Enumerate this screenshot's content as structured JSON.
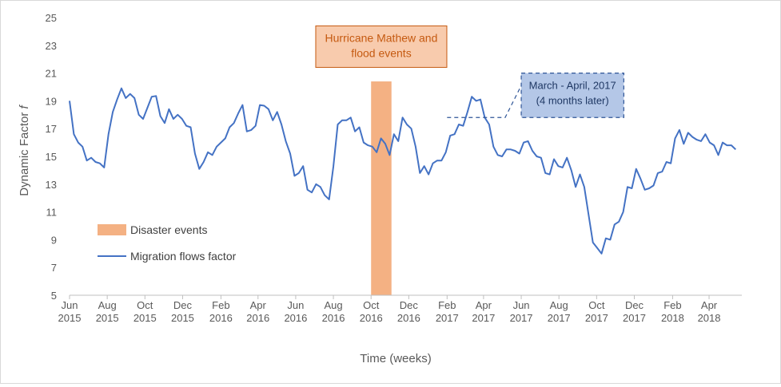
{
  "chart_data": {
    "type": "line",
    "title": "",
    "xlabel": "Time (weeks)",
    "ylabel": "Dynamic Factor",
    "ylabel_symbol": "f",
    "ylim": [
      5,
      25
    ],
    "yticks": [
      5,
      7,
      9,
      11,
      13,
      15,
      17,
      19,
      21,
      23,
      25
    ],
    "grid": {
      "horizontal": false,
      "vertical": false
    },
    "x_tick_labels": [
      {
        "month": "Jun",
        "year": "2015",
        "date": "2015-06-01"
      },
      {
        "month": "Aug",
        "year": "2015",
        "date": "2015-08-01"
      },
      {
        "month": "Oct",
        "year": "2015",
        "date": "2015-10-01"
      },
      {
        "month": "Dec",
        "year": "2015",
        "date": "2015-12-01"
      },
      {
        "month": "Feb",
        "year": "2016",
        "date": "2016-02-01"
      },
      {
        "month": "Apr",
        "year": "2016",
        "date": "2016-04-01"
      },
      {
        "month": "Jun",
        "year": "2016",
        "date": "2016-06-01"
      },
      {
        "month": "Aug",
        "year": "2016",
        "date": "2016-08-01"
      },
      {
        "month": "Oct",
        "year": "2016",
        "date": "2016-10-01"
      },
      {
        "month": "Dec",
        "year": "2016",
        "date": "2016-12-01"
      },
      {
        "month": "Feb",
        "year": "2017",
        "date": "2017-02-01"
      },
      {
        "month": "Apr",
        "year": "2017",
        "date": "2017-04-01"
      },
      {
        "month": "Jun",
        "year": "2017",
        "date": "2017-06-01"
      },
      {
        "month": "Aug",
        "year": "2017",
        "date": "2017-08-01"
      },
      {
        "month": "Oct",
        "year": "2017",
        "date": "2017-10-01"
      },
      {
        "month": "Dec",
        "year": "2017",
        "date": "2017-12-01"
      },
      {
        "month": "Feb",
        "year": "2018",
        "date": "2018-02-01"
      },
      {
        "month": "Apr",
        "year": "2018",
        "date": "2018-04-01"
      }
    ],
    "xlim": [
      "2015-06-01",
      "2018-05-24"
    ],
    "legend": {
      "placement": "lower-left",
      "entries": [
        {
          "label": "Disaster events",
          "kind": "box",
          "color": "#f4b183"
        },
        {
          "label": "Migration flows factor",
          "kind": "line",
          "color": "#4472c4"
        }
      ]
    },
    "disaster_band": {
      "start": "2016-10-01",
      "end": "2016-11-03",
      "color": "#f4b183",
      "label_lines": [
        "Hurricane Mathew and",
        "flood events"
      ],
      "label_color": "#c55a11",
      "label_fill": "#f8cbad",
      "label_border": "#c55a11"
    },
    "callout": {
      "lines": [
        "March - April, 2017",
        "(4 months later)"
      ],
      "fill": "#b4c7e7",
      "border": "#2f5597",
      "text_color": "#1f3864",
      "start": "2017-06-01",
      "end": "2017-11-14",
      "y_top": 21,
      "y_bottom": 17.8,
      "leader": [
        {
          "date": "2017-02-01",
          "y": 17.8
        },
        {
          "date": "2017-05-06",
          "y": 17.8
        },
        {
          "date": "2017-06-01",
          "y": 20.1
        }
      ]
    },
    "series": [
      {
        "name": "Migration flows factor",
        "color": "#4472c4",
        "start_date": "2015-06-01",
        "interval_days": 7,
        "values": [
          19.0,
          16.6,
          16.0,
          15.7,
          14.7,
          14.9,
          14.6,
          14.5,
          14.2,
          16.6,
          18.2,
          19.1,
          19.9,
          19.2,
          19.5,
          19.2,
          18.0,
          17.7,
          18.5,
          19.3,
          19.35,
          17.9,
          17.4,
          18.4,
          17.7,
          18.0,
          17.7,
          17.2,
          17.1,
          15.2,
          14.1,
          14.6,
          15.3,
          15.1,
          15.7,
          16.0,
          16.3,
          17.1,
          17.4,
          18.1,
          18.7,
          16.8,
          16.9,
          17.2,
          18.7,
          18.65,
          18.4,
          17.6,
          18.2,
          17.3,
          16.1,
          15.2,
          13.6,
          13.8,
          14.3,
          12.6,
          12.4,
          13.0,
          12.8,
          12.2,
          11.9,
          14.3,
          17.3,
          17.6,
          17.6,
          17.8,
          16.8,
          17.1,
          16.0,
          15.8,
          15.7,
          15.3,
          16.3,
          15.9,
          15.1,
          16.6,
          16.1,
          17.8,
          17.3,
          17.0,
          15.7,
          13.8,
          14.3,
          13.7,
          14.5,
          14.7,
          14.7,
          15.3,
          16.5,
          16.6,
          17.3,
          17.2,
          18.2,
          19.3,
          19.0,
          19.1,
          17.8,
          17.3,
          15.7,
          15.1,
          15.0,
          15.5,
          15.5,
          15.4,
          15.2,
          16.0,
          16.1,
          15.4,
          15.0,
          14.9,
          13.8,
          13.7,
          14.8,
          14.3,
          14.2,
          14.9,
          14.0,
          12.8,
          13.7,
          12.8,
          10.8,
          8.8,
          8.4,
          8.0,
          9.1,
          9.0,
          10.1,
          10.3,
          11.0,
          12.8,
          12.7,
          14.1,
          13.4,
          12.6,
          12.7,
          12.9,
          13.8,
          13.9,
          14.6,
          14.5,
          16.3,
          16.9,
          15.9,
          16.7,
          16.4,
          16.2,
          16.1,
          16.6,
          16.0,
          15.8,
          15.1,
          16.0,
          15.8,
          15.8,
          15.5
        ]
      }
    ]
  }
}
